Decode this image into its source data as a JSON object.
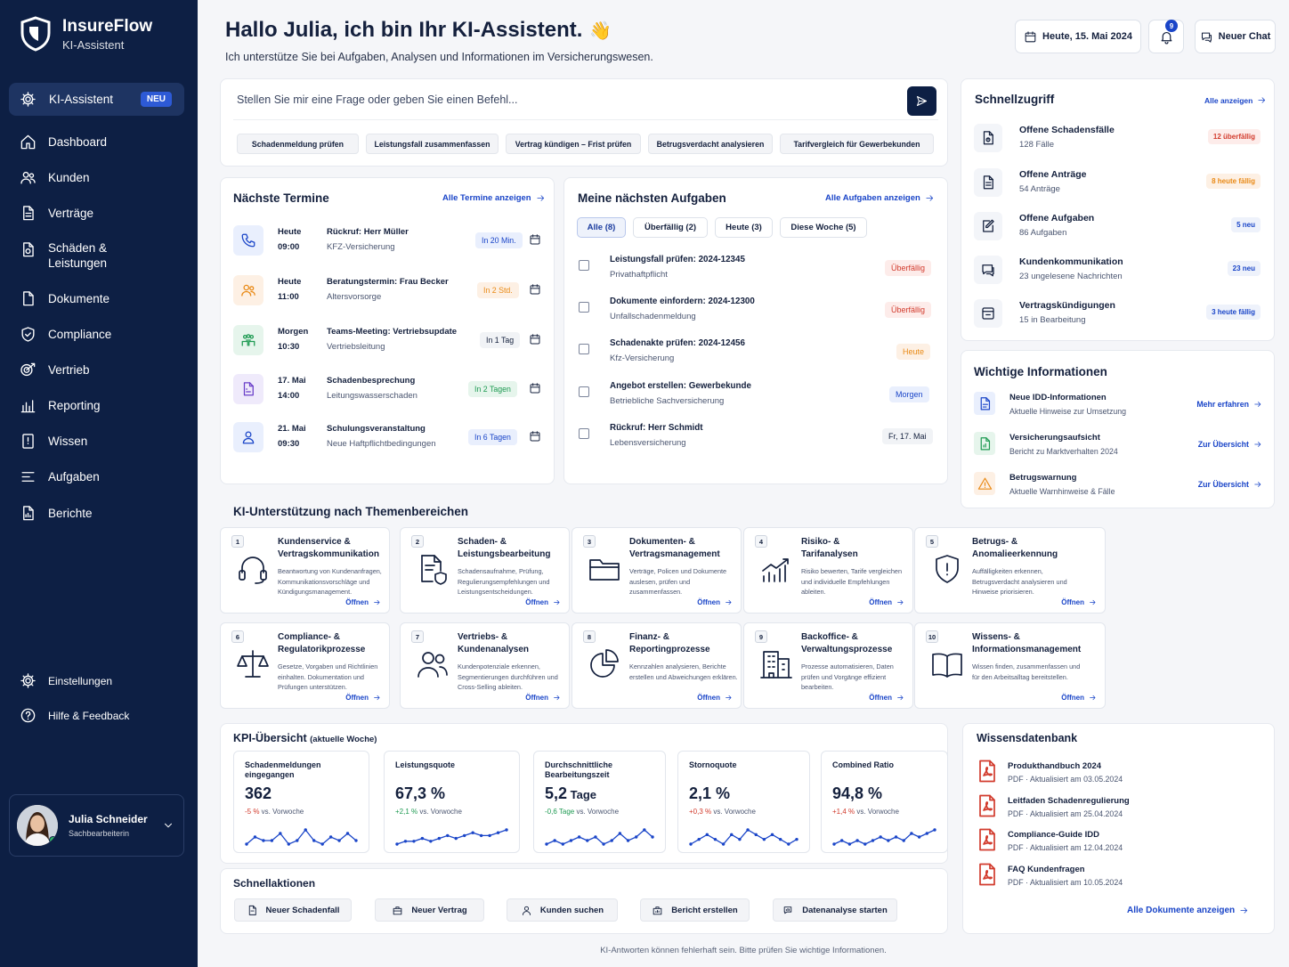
{
  "brand": {
    "name": "InsureFlow",
    "sub": "KI-Assistent"
  },
  "nav": {
    "active": {
      "label": "KI-Assistent",
      "badge": "NEU",
      "icon": "gear-icon"
    },
    "items": [
      {
        "label": "Dashboard",
        "icon": "home-icon"
      },
      {
        "label": "Kunden",
        "icon": "users-icon"
      },
      {
        "label": "Verträge",
        "icon": "contract-icon"
      },
      {
        "label": "Schäden &",
        "label2": "Leistungen",
        "icon": "claim-icon"
      },
      {
        "label": "Dokumente",
        "icon": "document-icon"
      },
      {
        "label": "Compliance",
        "icon": "shield-icon"
      },
      {
        "label": "Vertrieb",
        "icon": "sales-icon"
      },
      {
        "label": "Reporting",
        "icon": "chart-icon"
      },
      {
        "label": "Wissen",
        "icon": "book-icon"
      },
      {
        "label": "Aufgaben",
        "icon": "tasks-icon"
      },
      {
        "label": "Berichte",
        "icon": "report-icon"
      }
    ],
    "bottom": [
      {
        "label": "Einstellungen",
        "icon": "gear-icon"
      },
      {
        "label": "Hilfe & Feedback",
        "icon": "help-icon"
      }
    ]
  },
  "user": {
    "name": "Julia Schneider",
    "role": "Sachbearbeiterin"
  },
  "header": {
    "title": "Hallo Julia, ich bin Ihr KI-Assistent.",
    "wave": "👋",
    "subtitle": "Ich unterstütze Sie bei Aufgaben, Analysen und Informationen im Versicherungswesen.",
    "date": "Heute, 15. Mai 2024",
    "notifications": "9",
    "new_chat": "Neuer Chat"
  },
  "prompt": {
    "placeholder": "Stellen Sie mir eine Frage oder geben Sie einen Befehl...",
    "chips": [
      "Schadenmeldung prüfen",
      "Leistungsfall zusammenfassen",
      "Vertrag kündigen – Frist prüfen",
      "Betrugsverdacht analysieren",
      "Tarifvergleich für Gewerbekunden"
    ]
  },
  "termine": {
    "title": "Nächste Termine",
    "link": "Alle Termine anzeigen",
    "items": [
      {
        "day": "Heute",
        "time": "09:00",
        "title": "Rückruf: Herr Müller",
        "sub": "KFZ-Versicherung",
        "badge": "In 20 Min."
      },
      {
        "day": "Heute",
        "time": "11:00",
        "title": "Beratungstermin: Frau Becker",
        "sub": "Altersvorsorge",
        "badge": "In 2 Std."
      },
      {
        "day": "Morgen",
        "time": "10:30",
        "title": "Teams-Meeting: Vertriebsupdate",
        "sub": "Vertriebsleitung",
        "badge": "In 1 Tag"
      },
      {
        "day": "17. Mai",
        "time": "14:00",
        "title": "Schadenbesprechung",
        "sub": "Leitungswasserschaden",
        "badge": "In 2 Tagen"
      },
      {
        "day": "21. Mai",
        "time": "09:30",
        "title": "Schulungsveranstaltung",
        "sub": "Neue Haftpflichtbedingungen",
        "badge": "In 6 Tagen"
      }
    ]
  },
  "aufgaben": {
    "title": "Meine nächsten Aufgaben",
    "link": "Alle Aufgaben anzeigen",
    "tabs": [
      "Alle (8)",
      "Überfällig (2)",
      "Heute (3)",
      "Diese Woche (5)"
    ],
    "items": [
      {
        "title": "Leistungsfall prüfen: 2024-12345",
        "sub": "Privathaftpflicht",
        "badge": "Überfällig"
      },
      {
        "title": "Dokumente einfordern: 2024-12300",
        "sub": "Unfallschadenmeldung",
        "badge": "Überfällig"
      },
      {
        "title": "Schadenakte prüfen: 2024-12456",
        "sub": "Kfz-Versicherung",
        "badge": "Heute"
      },
      {
        "title": "Angebot erstellen: Gewerbekunde",
        "sub": "Betriebliche Sachversicherung",
        "badge": "Morgen"
      },
      {
        "title": "Rückruf: Herr Schmidt",
        "sub": "Lebensversicherung",
        "badge": "Fr, 17. Mai"
      }
    ]
  },
  "schnellzugriff": {
    "title": "Schnellzugriff",
    "link": "Alle anzeigen",
    "items": [
      {
        "title": "Offene Schadensfälle",
        "sub": "128 Fälle",
        "badge": "12 überfällig"
      },
      {
        "title": "Offene Anträge",
        "sub": "54 Anträge",
        "badge": "8 heute fällig"
      },
      {
        "title": "Offene Aufgaben",
        "sub": "86 Aufgaben",
        "badge": "5 neu"
      },
      {
        "title": "Kundenkommunikation",
        "sub": "23 ungelesene Nachrichten",
        "badge": "23 neu"
      },
      {
        "title": "Vertragskündigungen",
        "sub": "15 in Bearbeitung",
        "badge": "3 heute fällig"
      }
    ]
  },
  "infos": {
    "title": "Wichtige Informationen",
    "items": [
      {
        "title": "Neue IDD-Informationen",
        "sub": "Aktuelle Hinweise zur Umsetzung",
        "link": "Mehr erfahren"
      },
      {
        "title": "Versicherungsaufsicht",
        "sub": "Bericht zu Marktverhalten 2024",
        "link": "Zur Übersicht"
      },
      {
        "title": "Betrugswarnung",
        "sub": "Aktuelle Warnhinweise & Fälle",
        "link": "Zur Übersicht"
      }
    ]
  },
  "themen": {
    "title": "KI-Unterstützung nach Themenbereichen",
    "open": "Öffnen",
    "items": [
      {
        "n": "1",
        "t1": "Kundenservice &",
        "t2": "Vertragskommunikation",
        "d": "Beantwortung von Kundenanfragen, Kommunikationsvorschläge und Kündigungsmanagement.",
        "icon": "headset-icon"
      },
      {
        "n": "2",
        "t1": "Schaden- &",
        "t2": "Leistungsbearbeitung",
        "d": "Schadensaufnahme, Prüfung, Regulierungsempfehlungen und Leistungsentscheidungen.",
        "icon": "claim-shield-icon"
      },
      {
        "n": "3",
        "t1": "Dokumenten- &",
        "t2": "Vertragsmanagement",
        "d": "Verträge, Policen und Dokumente auslesen, prüfen und zusammenfassen.",
        "icon": "folder-icon"
      },
      {
        "n": "4",
        "t1": "Risiko- &",
        "t2": "Tarifanalysen",
        "d": "Risiko bewerten, Tarife vergleichen und individuelle Empfehlungen ableiten.",
        "icon": "bar-chart-icon"
      },
      {
        "n": "5",
        "t1": "Betrugs- &",
        "t2": "Anomalieerkennung",
        "d": "Auffälligkeiten erkennen, Betrugsverdacht analysieren und Hinweise priorisieren.",
        "icon": "shield-alert-icon"
      },
      {
        "n": "6",
        "t1": "Compliance- &",
        "t2": "Regulatorikprozesse",
        "d": "Gesetze, Vorgaben und Richtlinien einhalten. Dokumentation und Prüfungen unterstützen.",
        "icon": "scale-icon"
      },
      {
        "n": "7",
        "t1": "Vertriebs- &",
        "t2": "Kundenanalysen",
        "d": "Kundenpotenziale erkennen, Segmentierungen durchführen und Cross-Selling ableiten.",
        "icon": "people-icon"
      },
      {
        "n": "8",
        "t1": "Finanz- &",
        "t2": "Reportingprozesse",
        "d": "Kennzahlen analysieren, Berichte erstellen und Abweichungen erklären.",
        "icon": "pie-icon"
      },
      {
        "n": "9",
        "t1": "Backoffice- &",
        "t2": "Verwaltungsprozesse",
        "d": "Prozesse automatisieren, Daten prüfen und Vorgänge effizient bearbeiten.",
        "icon": "building-icon"
      },
      {
        "n": "10",
        "t1": "Wissens- &",
        "t2": "Informationsmanagement",
        "d": "Wissen finden, zusammenfassen und für den Arbeitsalltag bereitstellen.",
        "icon": "book-open-icon"
      }
    ]
  },
  "kpi": {
    "title": "KPI-Übersicht",
    "title_suffix": "(aktuelle Woche)",
    "items": [
      {
        "label": "Schadenmeldungen eingegangen",
        "value": "362",
        "unit": "",
        "delta": "-5 %",
        "delta_suffix": " vs. Vorwoche",
        "delta_color": "#d23b2d",
        "spark": [
          5,
          7,
          6,
          6,
          8,
          5,
          6,
          9,
          6,
          5,
          7,
          6,
          8,
          6
        ]
      },
      {
        "label": "Leistungsquote",
        "value": "67,3 %",
        "unit": "",
        "delta": "+2,1 %",
        "delta_suffix": " vs. Vorwoche",
        "delta_color": "#1e9a52",
        "spark": [
          4,
          5,
          5,
          6,
          5,
          6,
          7,
          6,
          7,
          8,
          7,
          7,
          8,
          9
        ]
      },
      {
        "label": "Durchschnittliche Bearbeitungszeit",
        "value": "5,2",
        "unit": " Tage",
        "delta": "-0,6 Tage",
        "delta_suffix": " vs. Vorwoche",
        "delta_color": "#1e9a52",
        "spark": [
          5,
          6,
          5,
          6,
          7,
          6,
          7,
          5,
          6,
          8,
          6,
          7,
          9,
          7
        ]
      },
      {
        "label": "Stornoquote",
        "value": "2,1 %",
        "unit": "",
        "delta": "+0,3 %",
        "delta_suffix": " vs. Vorwoche",
        "delta_color": "#d23b2d",
        "spark": [
          5,
          6,
          7,
          6,
          5,
          7,
          6,
          8,
          7,
          6,
          7,
          6,
          5,
          6
        ]
      },
      {
        "label": "Combined Ratio",
        "value": "94,8 %",
        "unit": "",
        "delta": "+1,4 %",
        "delta_suffix": " vs. Vorwoche",
        "delta_color": "#d23b2d",
        "spark": [
          5,
          6,
          5,
          6,
          5,
          6,
          7,
          6,
          7,
          6,
          8,
          7,
          8,
          9
        ]
      }
    ]
  },
  "schnellaktionen": {
    "title": "Schnellaktionen",
    "items": [
      {
        "label": "Neuer Schadenfall",
        "icon": "file-icon"
      },
      {
        "label": "Neuer Vertrag",
        "icon": "contract-icon"
      },
      {
        "label": "Kunden suchen",
        "icon": "user-search-icon"
      },
      {
        "label": "Bericht erstellen",
        "icon": "report-icon"
      },
      {
        "label": "Datenanalyse starten",
        "icon": "analysis-icon"
      }
    ]
  },
  "wissen": {
    "title": "Wissensdatenbank",
    "link": "Alle Dokumente anzeigen",
    "items": [
      {
        "title": "Produkthandbuch 2024",
        "type": "PDF",
        "updated": "Aktualisiert am 03.05.2024"
      },
      {
        "title": "Leitfaden Schadenregulierung",
        "type": "PDF",
        "updated": "Aktualisiert am 25.04.2024"
      },
      {
        "title": "Compliance-Guide IDD",
        "type": "PDF",
        "updated": "Aktualisiert am 12.04.2024"
      },
      {
        "title": "FAQ Kundenfragen",
        "type": "PDF",
        "updated": "Aktualisiert am 10.05.2024"
      }
    ]
  },
  "footer": "KI-Antworten können fehlerhaft sein. Bitte prüfen Sie wichtige Informationen.",
  "colors": {
    "sidebar": "#0d1f44",
    "accent": "#1a45c8",
    "danger": "#d23b2d",
    "warning": "#e98a16",
    "success": "#1e9a52"
  }
}
